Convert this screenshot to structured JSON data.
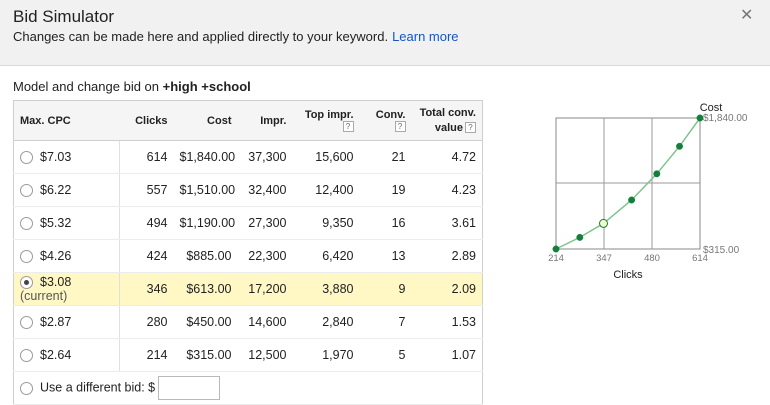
{
  "dialog": {
    "title": "Bid Simulator",
    "subtitle": "Changes can be made here and applied directly to your keyword.",
    "learn_more": "Learn more",
    "close_glyph": "✕"
  },
  "model": {
    "prefix": "Model and change bid on",
    "keyword": "+high +school"
  },
  "table": {
    "headers": {
      "max_cpc": "Max. CPC",
      "clicks": "Clicks",
      "cost": "Cost",
      "impr": "Impr.",
      "top_impr": "Top impr.",
      "conv": "Conv.",
      "total_conv_line1": "Total conv.",
      "total_conv_line2": "value",
      "help": "?"
    },
    "rows": [
      {
        "bid": "$7.03",
        "clicks": "614",
        "cost": "$1,840.00",
        "impr": "37,300",
        "top_impr": "15,600",
        "conv": "21",
        "total": "4.72"
      },
      {
        "bid": "$6.22",
        "clicks": "557",
        "cost": "$1,510.00",
        "impr": "32,400",
        "top_impr": "12,400",
        "conv": "19",
        "total": "4.23"
      },
      {
        "bid": "$5.32",
        "clicks": "494",
        "cost": "$1,190.00",
        "impr": "27,300",
        "top_impr": "9,350",
        "conv": "16",
        "total": "3.61"
      },
      {
        "bid": "$4.26",
        "clicks": "424",
        "cost": "$885.00",
        "impr": "22,300",
        "top_impr": "6,420",
        "conv": "13",
        "total": "2.89"
      },
      {
        "bid": "$3.08",
        "current_label": "(current)",
        "clicks": "346",
        "cost": "$613.00",
        "impr": "17,200",
        "top_impr": "3,880",
        "conv": "9",
        "total": "2.09"
      },
      {
        "bid": "$2.87",
        "clicks": "280",
        "cost": "$450.00",
        "impr": "14,600",
        "top_impr": "2,840",
        "conv": "7",
        "total": "1.53"
      },
      {
        "bid": "$2.64",
        "clicks": "214",
        "cost": "$315.00",
        "impr": "12,500",
        "top_impr": "1,970",
        "conv": "5",
        "total": "1.07"
      }
    ],
    "custom_bid_label": "Use a different bid: $",
    "custom_bid_value": ""
  },
  "chart_data": {
    "type": "line",
    "title": "",
    "xlabel": "Clicks",
    "ylabel": "Cost",
    "x": [
      214,
      280,
      346,
      424,
      494,
      557,
      614
    ],
    "y": [
      315,
      450,
      613,
      885,
      1190,
      1510,
      1840
    ],
    "current_index": 2,
    "xlim": [
      214,
      614
    ],
    "ylim": [
      315,
      1840
    ],
    "x_ticks": [
      "214",
      "347",
      "480",
      "614"
    ],
    "y_tick_labels": {
      "max": "$1,840.00",
      "min": "$315.00"
    },
    "grid": true,
    "colors": {
      "line": "#7cc48c",
      "point": "#12803a",
      "current_fill": "#f4f9c7",
      "grid": "#9a9a9a"
    }
  }
}
